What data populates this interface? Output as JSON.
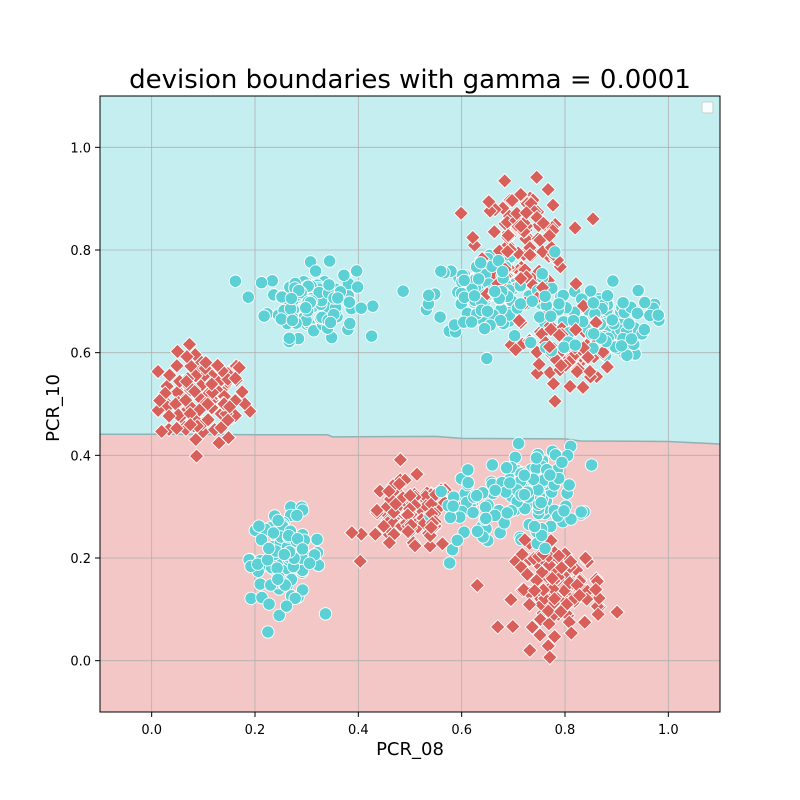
{
  "chart_data": {
    "type": "scatter",
    "title": "devision boundaries with gamma = 0.0001",
    "xlabel": "PCR_08",
    "ylabel": "PCR_10",
    "xlim": [
      -0.1,
      1.1
    ],
    "ylim": [
      -0.1,
      1.1
    ],
    "xticks": [
      "0.0",
      "0.2",
      "0.4",
      "0.6",
      "0.8",
      "1.0"
    ],
    "yticks": [
      "0.0",
      "0.2",
      "0.4",
      "0.6",
      "0.8",
      "1.0"
    ],
    "grid": true,
    "legend": {
      "placement": "top-right",
      "entries": []
    },
    "colors": {
      "class_positive": "#5bd0d5",
      "class_negative": "#d9605a",
      "region_positive": "#c5eef1",
      "region_negative": "#f3c7c6",
      "boundary": "#8fb2b6",
      "grid": "#b0b0b0"
    },
    "decision_boundary": [
      [
        -0.1,
        0.441
      ],
      [
        0.05,
        0.441
      ],
      [
        0.2,
        0.44
      ],
      [
        0.34,
        0.44
      ],
      [
        0.35,
        0.436
      ],
      [
        0.55,
        0.437
      ],
      [
        0.6,
        0.433
      ],
      [
        0.8,
        0.432
      ],
      [
        0.83,
        0.428
      ],
      [
        1.0,
        0.427
      ],
      [
        1.1,
        0.422
      ]
    ],
    "regions": [
      {
        "name": "upper",
        "class": "positive",
        "side": "above"
      },
      {
        "name": "lower",
        "class": "negative",
        "side": "below"
      }
    ],
    "clusters": [
      {
        "class": "negative",
        "center": [
          0.1,
          0.51
        ],
        "spread": [
          0.05,
          0.05
        ],
        "n": 120
      },
      {
        "class": "positive",
        "center": [
          0.31,
          0.7
        ],
        "spread": [
          0.05,
          0.04
        ],
        "n": 130
      },
      {
        "class": "positive",
        "center": [
          0.26,
          0.2
        ],
        "spread": [
          0.04,
          0.05
        ],
        "n": 110
      },
      {
        "class": "negative",
        "center": [
          0.5,
          0.28
        ],
        "spread": [
          0.05,
          0.04
        ],
        "n": 100
      },
      {
        "class": "negative",
        "center": [
          0.72,
          0.82
        ],
        "spread": [
          0.05,
          0.06
        ],
        "n": 110
      },
      {
        "class": "positive",
        "center": [
          0.66,
          0.71
        ],
        "spread": [
          0.07,
          0.05
        ],
        "n": 130
      },
      {
        "class": "positive",
        "center": [
          0.86,
          0.66
        ],
        "spread": [
          0.06,
          0.04
        ],
        "n": 110
      },
      {
        "class": "negative",
        "center": [
          0.8,
          0.6
        ],
        "spread": [
          0.05,
          0.05
        ],
        "n": 70
      },
      {
        "class": "positive",
        "center": [
          0.74,
          0.33
        ],
        "spread": [
          0.05,
          0.05
        ],
        "n": 120
      },
      {
        "class": "negative",
        "center": [
          0.79,
          0.14
        ],
        "spread": [
          0.05,
          0.05
        ],
        "n": 110
      },
      {
        "class": "positive",
        "center": [
          0.62,
          0.29
        ],
        "spread": [
          0.04,
          0.04
        ],
        "n": 40
      }
    ]
  }
}
